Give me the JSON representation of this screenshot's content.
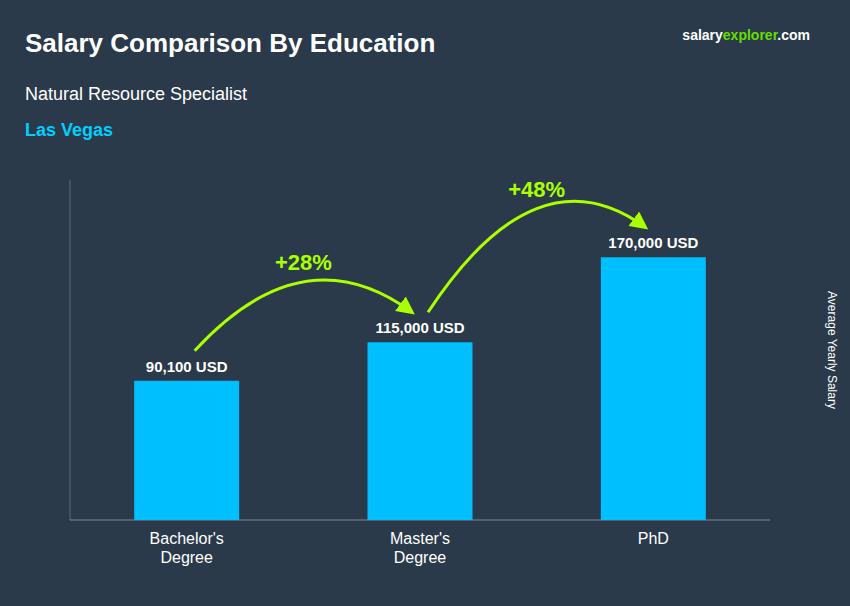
{
  "chart_data": {
    "type": "bar",
    "title": "Salary Comparison By Education",
    "subtitle": "Natural Resource Specialist",
    "ylabel": "Average Yearly Salary",
    "categories": [
      "Bachelor's\nDegree",
      "Master's\nDegree",
      "PhD"
    ],
    "values": [
      90100,
      115000,
      170000
    ],
    "value_labels": [
      "90,100 USD",
      "115,000 USD",
      "170,000 USD"
    ],
    "data_labels": true,
    "color": "#00BFFF",
    "background_color": "#2a3a4a",
    "ylim": [
      0,
      220000
    ],
    "grid": false,
    "tick_labels": "x",
    "annotations": [
      {
        "type": "label",
        "text": "Las Vegas",
        "color": "#00CFFF"
      },
      {
        "type": "arrow",
        "text": "+28%",
        "color": "#AAFF00"
      },
      {
        "type": "arrow",
        "text": "+48%",
        "color": "#AAFF00"
      },
      {
        "type": "source",
        "parts": [
          {
            "text": "salary",
            "color": "#FFFFFF"
          },
          {
            "text": "explorer",
            "color": "#66DD00"
          },
          {
            "text": ".com",
            "color": "#FFFFFF"
          }
        ]
      }
    ]
  }
}
